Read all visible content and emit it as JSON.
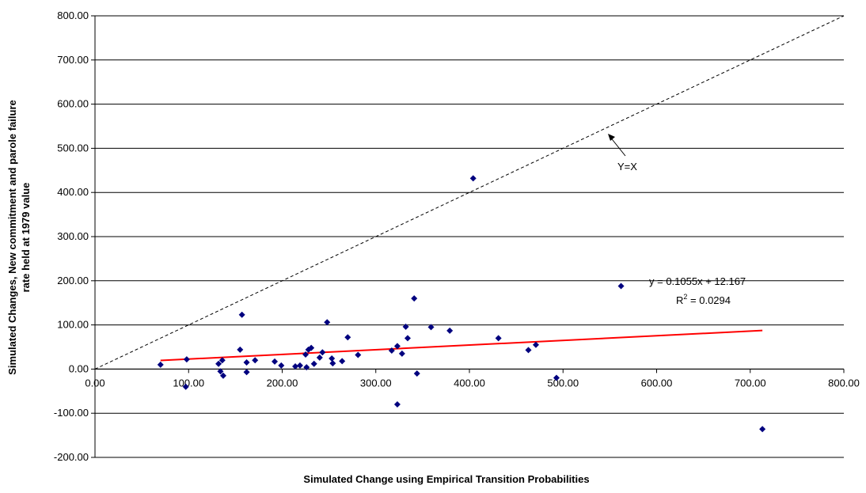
{
  "chart_data": {
    "type": "scatter",
    "xlabel": "Simulated Change using Empirical Transition Probabilities",
    "ylabel_lines": [
      "Simulated Changes, New commitment and parole failure",
      "rate held at 1979 value"
    ],
    "xlim": [
      0,
      800
    ],
    "ylim": [
      -200,
      800
    ],
    "x_ticks": [
      0,
      100,
      200,
      300,
      400,
      500,
      600,
      700,
      800
    ],
    "y_ticks": [
      -200,
      -100,
      0,
      100,
      200,
      300,
      400,
      500,
      600,
      700,
      800
    ],
    "x_tick_labels": [
      "0.00",
      "100.00",
      "200.00",
      "300.00",
      "400.00",
      "500.00",
      "600.00",
      "700.00",
      "800.00"
    ],
    "y_tick_labels": [
      "-200.00",
      "-100.00",
      "0.00",
      "100.00",
      "200.00",
      "300.00",
      "400.00",
      "500.00",
      "600.00",
      "700.00",
      "800.00"
    ],
    "grid": "horizontal",
    "marker_color": "#00007f",
    "trend_color": "#ff0000",
    "points": [
      [
        70,
        10
      ],
      [
        97,
        -40
      ],
      [
        98,
        22
      ],
      [
        132,
        12
      ],
      [
        134,
        -5
      ],
      [
        136,
        20
      ],
      [
        137,
        -15
      ],
      [
        155,
        44
      ],
      [
        157,
        123
      ],
      [
        162,
        15
      ],
      [
        162,
        -7
      ],
      [
        171,
        20
      ],
      [
        192,
        17
      ],
      [
        199,
        8
      ],
      [
        214,
        6
      ],
      [
        219,
        8
      ],
      [
        225,
        33
      ],
      [
        226,
        4
      ],
      [
        228,
        44
      ],
      [
        231,
        48
      ],
      [
        234,
        12
      ],
      [
        240,
        26
      ],
      [
        243,
        38
      ],
      [
        248,
        106
      ],
      [
        253,
        24
      ],
      [
        254,
        13
      ],
      [
        264,
        18
      ],
      [
        270,
        72
      ],
      [
        281,
        32
      ],
      [
        317,
        42
      ],
      [
        323,
        -80
      ],
      [
        323,
        52
      ],
      [
        328,
        35
      ],
      [
        332,
        96
      ],
      [
        334,
        70
      ],
      [
        341,
        160
      ],
      [
        344,
        -10
      ],
      [
        359,
        95
      ],
      [
        379,
        87
      ],
      [
        404,
        432
      ],
      [
        431,
        70
      ],
      [
        463,
        43
      ],
      [
        471,
        55
      ],
      [
        493,
        -20
      ],
      [
        562,
        188
      ],
      [
        713,
        -136
      ]
    ],
    "trendline": {
      "slope": 0.1055,
      "intercept": 12.167,
      "x_range": [
        70,
        713
      ]
    },
    "identity_line": {
      "x_range": [
        0,
        800
      ]
    },
    "annotations": {
      "identity_label": "Y=X",
      "equation": "y = 0.1055x + 12.167",
      "r2_prefix": "R",
      "r2_sup": "2",
      "r2_value": " = 0.0294"
    }
  }
}
